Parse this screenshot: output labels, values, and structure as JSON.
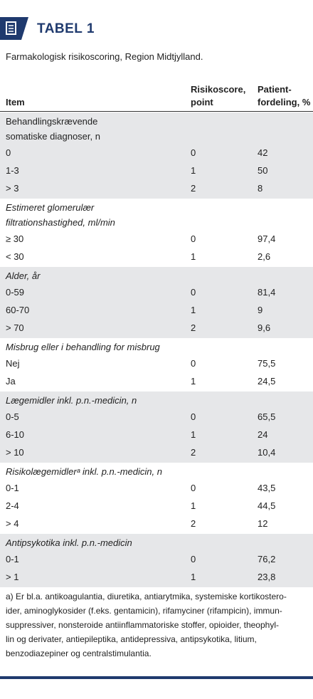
{
  "header": {
    "title": "TABEL 1"
  },
  "caption": "Farmakologisk risikoscoring, Region Midtjylland.",
  "table": {
    "columns": [
      [
        "Item"
      ],
      [
        "Risikoscore,",
        "point"
      ],
      [
        "Patient-",
        "fordeling, %"
      ]
    ],
    "groups": [
      {
        "title": [
          "Behandlingskrævende",
          "somatiske diagnoser, n"
        ],
        "italic": false,
        "rows": [
          [
            "0",
            "0",
            "42"
          ],
          [
            "1-3",
            "1",
            "50"
          ],
          [
            "> 3",
            "2",
            "8"
          ]
        ]
      },
      {
        "title": [
          "Estimeret glomerulær",
          "filtrationshastighed, ml/min"
        ],
        "italic": true,
        "rows": [
          [
            "≥ 30",
            "0",
            "97,4"
          ],
          [
            "< 30",
            "1",
            "2,6"
          ]
        ]
      },
      {
        "title": [
          "Alder, år"
        ],
        "italic": true,
        "rows": [
          [
            "0-59",
            "0",
            "81,4"
          ],
          [
            "60-70",
            "1",
            "9"
          ],
          [
            "> 70",
            "2",
            "9,6"
          ]
        ]
      },
      {
        "title": [
          "Misbrug eller i behandling for misbrug"
        ],
        "italic": true,
        "rows": [
          [
            "Nej",
            "0",
            "75,5"
          ],
          [
            "Ja",
            "1",
            "24,5"
          ]
        ]
      },
      {
        "title": [
          "Lægemidler inkl. p.n.-medicin, n"
        ],
        "italic": true,
        "rows": [
          [
            "0-5",
            "0",
            "65,5"
          ],
          [
            "6-10",
            "1",
            "24"
          ],
          [
            "> 10",
            "2",
            "10,4"
          ]
        ]
      },
      {
        "title": [
          "Risikolægemidlerᵃ inkl. p.n.-medicin, n"
        ],
        "italic": true,
        "rows": [
          [
            "0-1",
            "0",
            "43,5"
          ],
          [
            "2-4",
            "1",
            "44,5"
          ],
          [
            "> 4",
            "2",
            "12"
          ]
        ]
      },
      {
        "title": [
          "Antipsykotika inkl. p.n.-medicin"
        ],
        "italic": true,
        "rows": [
          [
            "0-1",
            "0",
            "76,2"
          ],
          [
            "> 1",
            "1",
            "23,8"
          ]
        ]
      }
    ]
  },
  "footnote": [
    "a) Er bl.a. antikoagulantia, diuretika, antiarytmika, systemiske kortikostero-",
    "ider, aminoglykosider (f.eks. gentamicin), rifamyciner (rifampicin), immun-",
    "suppressiver, nonsteroide antiinflammatoriske stoffer, opioider, theophyl-",
    "lin og derivater, antiepileptika, antidepressiva, antipsykotika, litium,",
    "benzodiazepiner og centralstimulantia."
  ]
}
